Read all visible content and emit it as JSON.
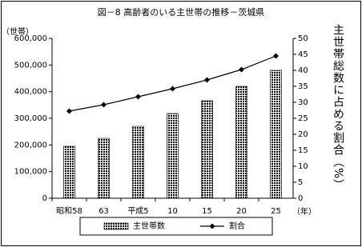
{
  "chart_data": {
    "type": "bar",
    "title": "図－8 高齢者のいる主世帯の推移－茨城県",
    "y_label": "（世帯）",
    "y2_label": "主世帯総数に占める割合（%）",
    "x_unit": "（年）",
    "categories": [
      "昭和58",
      "63",
      "平成5",
      "10",
      "15",
      "20",
      "25"
    ],
    "series": [
      {
        "name": "主世帯数",
        "type": "bar",
        "color": "#000000",
        "values": [
          195000,
          225000,
          270000,
          318000,
          366000,
          420000,
          480000
        ]
      },
      {
        "name": "割合",
        "type": "line",
        "axis": "y2",
        "color": "#000000",
        "values": [
          27.25,
          29.25,
          31.75,
          34.25,
          37,
          40.25,
          44.5
        ]
      }
    ],
    "ylim": [
      0,
      600000
    ],
    "yticks": [
      0,
      {
        "value": 100000,
        "label": "100,000"
      },
      {
        "value": 200000,
        "label": "200,000"
      },
      {
        "value": 300000,
        "label": "300,000"
      },
      {
        "value": 400000,
        "label": "400,000"
      },
      {
        "value": 500000,
        "label": "500,000"
      },
      {
        "value": 600000,
        "label": "600,000"
      }
    ],
    "y2lim": [
      0,
      50
    ],
    "y2ticks": [
      0,
      5,
      10,
      15,
      20,
      25,
      30,
      35,
      40,
      45,
      50
    ],
    "grid": false,
    "legend": "bottom"
  }
}
